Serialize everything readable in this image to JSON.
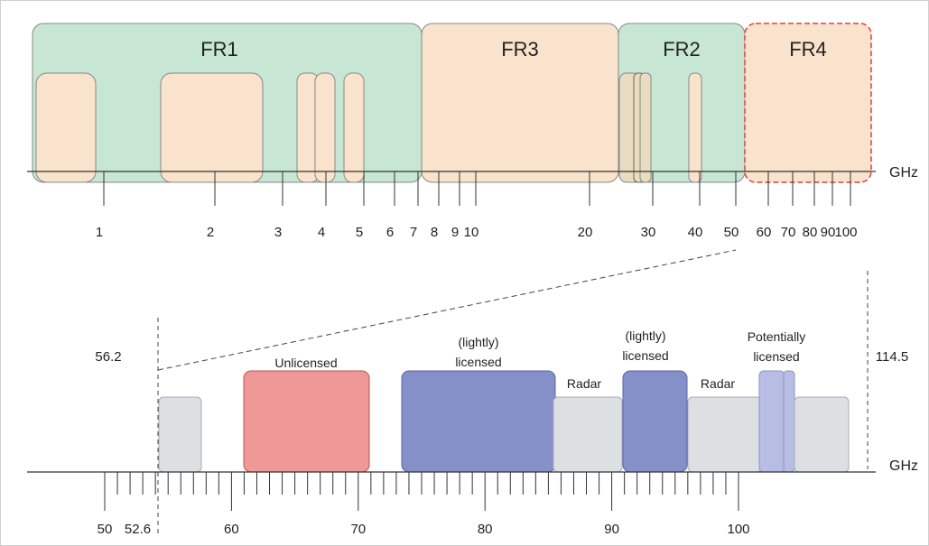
{
  "unit": "GHz",
  "top": {
    "bands": [
      {
        "name": "FR1",
        "color": "#c8e6d4"
      },
      {
        "name": "FR3",
        "color": "#f9e3cc"
      },
      {
        "name": "FR2",
        "color": "#c8e6d4"
      },
      {
        "name": "FR4",
        "color": "#f9e3cc",
        "border": "#e04040"
      }
    ],
    "ticks": [
      "1",
      "2",
      "3",
      "4",
      "5",
      "6",
      "7",
      "8",
      "9",
      "10",
      "20",
      "30",
      "40",
      "50",
      "60",
      "70",
      "80",
      "90",
      "100"
    ]
  },
  "zoom": {
    "left_label": "56.2",
    "right_label": "114.5"
  },
  "bottom": {
    "ticks": [
      "50",
      "52.6",
      "60",
      "70",
      "80",
      "90",
      "100"
    ],
    "blocks": [
      {
        "label": [],
        "color": "#dde0e3"
      },
      {
        "label": [
          "Unlicensed"
        ],
        "color": "#ef9898"
      },
      {
        "label": [
          "(lightly)",
          "licensed"
        ],
        "color": "#8590c9"
      },
      {
        "label": [
          "Radar"
        ],
        "color": "#dde0e3"
      },
      {
        "label": [
          "(lightly)",
          "licensed"
        ],
        "color": "#8590c9"
      },
      {
        "label": [
          "Radar"
        ],
        "color": "#dde0e3"
      },
      {
        "label": [
          "Potentially",
          "licensed"
        ],
        "color": "#b7bde3"
      },
      {
        "label": [],
        "color": "#dde0e3"
      }
    ]
  }
}
